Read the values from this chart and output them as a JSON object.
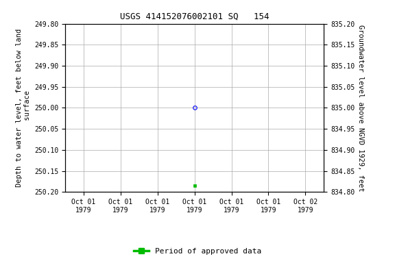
{
  "title": "USGS 414152076002101 SQ   154",
  "ylabel_left": "Depth to water level, feet below land\n surface",
  "ylabel_right": "Groundwater level above NGVD 1929, feet",
  "ylim_left": [
    250.2,
    249.8
  ],
  "ylim_right": [
    834.8,
    835.2
  ],
  "yticks_left": [
    249.8,
    249.85,
    249.9,
    249.95,
    250.0,
    250.05,
    250.1,
    250.15,
    250.2
  ],
  "yticks_right": [
    835.2,
    835.15,
    835.1,
    835.05,
    835.0,
    834.95,
    834.9,
    834.85,
    834.8
  ],
  "data_blue_circle": {
    "depth": 250.0
  },
  "data_green_square": {
    "depth": 250.185
  },
  "bg_color": "#ffffff",
  "grid_color": "#aaaaaa",
  "title_fontsize": 9,
  "axis_fontsize": 7.5,
  "tick_fontsize": 7,
  "legend_label": "Period of approved data",
  "legend_color": "#00bb00",
  "x_num_ticks": 7,
  "x_center_tick_idx": 3,
  "tick_labels": [
    "Oct 01\n1979",
    "Oct 01\n1979",
    "Oct 01\n1979",
    "Oct 01\n1979",
    "Oct 01\n1979",
    "Oct 01\n1979",
    "Oct 02\n1979"
  ]
}
